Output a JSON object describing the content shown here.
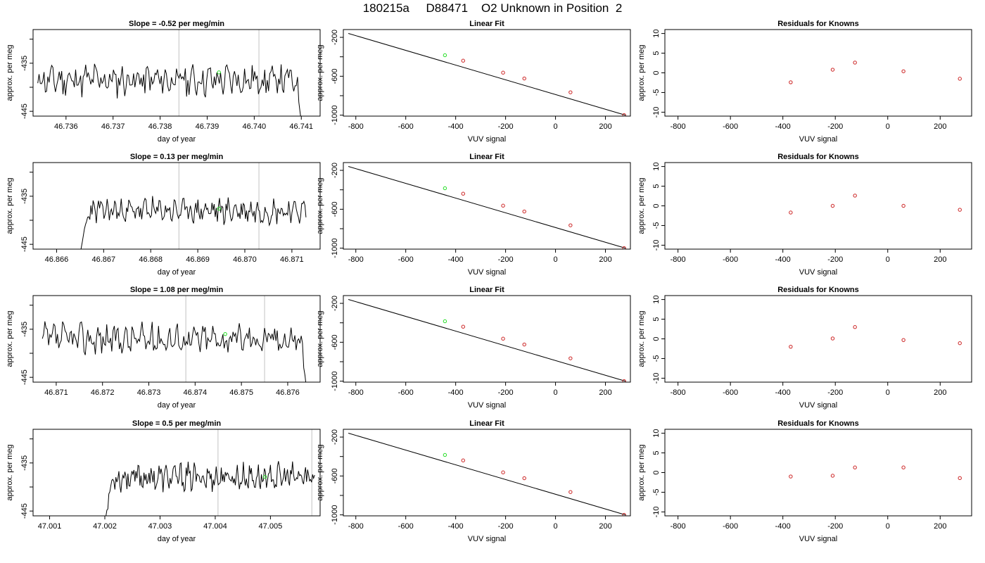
{
  "page": {
    "title": "180215a     D88471    O2 Unknown in Position  2"
  },
  "colors": {
    "line": "#000000",
    "fit": "#000000",
    "residual_point": "#cc2222",
    "unknown_point": "#22dd22",
    "window_marker": "#cccccc",
    "axes": "#000000"
  },
  "rows": [
    {
      "timeseries": {
        "type": "line",
        "title": "Slope =  -0.52  per meg/min",
        "xlabel": "day of year",
        "ylabel": "approx. per meg",
        "xlim": [
          46.7353,
          46.7414
        ],
        "ylim": [
          -446.0,
          -428.0
        ],
        "xticks": [
          46.736,
          46.737,
          46.738,
          46.739,
          46.74,
          46.741
        ],
        "xtick_labels": [
          "46.736",
          "46.737",
          "46.738",
          "46.739",
          "46.740",
          "46.741"
        ],
        "yticks": [
          -445,
          -440,
          -435,
          -430
        ],
        "ytick_labels": [
          "-445",
          "",
          "-435",
          ""
        ],
        "start": 46.7354,
        "end": 46.741,
        "base": -438.5,
        "amp": 2.6,
        "seed": 11,
        "ramp_start": null,
        "drop_end": -447,
        "window_lines": [
          46.7384,
          46.7401
        ],
        "unknown_point": {
          "x": 46.73925,
          "y": -436.9
        }
      },
      "fit": {
        "type": "line",
        "title": "Linear Fit",
        "xlabel": "VUV signal",
        "ylabel": "approx. per meg",
        "xlim": [
          -850,
          300
        ],
        "ylim": [
          -1010,
          -120
        ],
        "xticks": [
          -800,
          -600,
          -400,
          -200,
          0,
          200
        ],
        "xtick_labels": [
          "-800",
          "-600",
          "-400",
          "-200",
          "0",
          "200"
        ],
        "yticks": [
          -1000,
          -800,
          -600,
          -400,
          -200
        ],
        "ytick_labels": [
          "-1000",
          "",
          "-600",
          "",
          "-200"
        ],
        "line": [
          [
            -830,
            -160
          ],
          [
            280,
            -1000
          ]
        ],
        "knowns": [
          [
            -370,
            -440
          ],
          [
            -210,
            -563
          ],
          [
            -125,
            -623
          ],
          [
            60,
            -765
          ],
          [
            275,
            -1000
          ]
        ],
        "unknown": [
          -443,
          -384
        ]
      },
      "residuals": {
        "type": "scatter",
        "title": "Residuals for Knowns",
        "xlabel": "VUV signal",
        "ylabel": "approx. per meg",
        "xlim": [
          -850,
          320
        ],
        "ylim": [
          -11,
          11
        ],
        "xticks": [
          -800,
          -600,
          -400,
          -200,
          0,
          200
        ],
        "xtick_labels": [
          "-800",
          "-600",
          "-400",
          "-200",
          "0",
          "200"
        ],
        "yticks": [
          -10,
          -5,
          0,
          5,
          10
        ],
        "ytick_labels": [
          "-10",
          "-5",
          "0",
          "5",
          "10"
        ],
        "points": [
          [
            -370,
            -2.4
          ],
          [
            -210,
            0.8
          ],
          [
            -125,
            2.6
          ],
          [
            60,
            0.4
          ],
          [
            275,
            -1.5
          ]
        ]
      }
    },
    {
      "timeseries": {
        "type": "line",
        "title": "Slope =  0.13  per meg/min",
        "xlabel": "day of year",
        "ylabel": "approx. per meg",
        "xlim": [
          46.8655,
          46.8716
        ],
        "ylim": [
          -446.0,
          -428.0
        ],
        "xticks": [
          46.866,
          46.867,
          46.868,
          46.869,
          46.87,
          46.871
        ],
        "xtick_labels": [
          "46.866",
          "46.867",
          "46.868",
          "46.869",
          "46.870",
          "46.871"
        ],
        "yticks": [
          -445,
          -440,
          -435,
          -430
        ],
        "ytick_labels": [
          "-445",
          "",
          "-435",
          ""
        ],
        "start": 46.8665,
        "end": 46.8713,
        "base": -438.0,
        "amp": 2.0,
        "seed": 23,
        "ramp_start": -447,
        "drop_end": null,
        "window_lines": [
          46.8686,
          46.8703
        ],
        "unknown_point": {
          "x": 46.86945,
          "y": -437.6
        }
      },
      "fit": {
        "type": "line",
        "title": "Linear Fit",
        "xlabel": "VUV signal",
        "ylabel": "approx. per meg",
        "xlim": [
          -850,
          300
        ],
        "ylim": [
          -1010,
          -120
        ],
        "xticks": [
          -800,
          -600,
          -400,
          -200,
          0,
          200
        ],
        "xtick_labels": [
          "-800",
          "-600",
          "-400",
          "-200",
          "0",
          "200"
        ],
        "yticks": [
          -1000,
          -800,
          -600,
          -400,
          -200
        ],
        "ytick_labels": [
          "-1000",
          "",
          "-600",
          "",
          "-200"
        ],
        "line": [
          [
            -830,
            -160
          ],
          [
            280,
            -1000
          ]
        ],
        "knowns": [
          [
            -370,
            -440
          ],
          [
            -210,
            -563
          ],
          [
            -125,
            -623
          ],
          [
            60,
            -765
          ],
          [
            275,
            -1000
          ]
        ],
        "unknown": [
          -443,
          -384
        ]
      },
      "residuals": {
        "type": "scatter",
        "title": "Residuals for Knowns",
        "xlabel": "VUV signal",
        "ylabel": "approx. per meg",
        "xlim": [
          -850,
          320
        ],
        "ylim": [
          -11,
          11
        ],
        "xticks": [
          -800,
          -600,
          -400,
          -200,
          0,
          200
        ],
        "xtick_labels": [
          "-800",
          "-600",
          "-400",
          "-200",
          "0",
          "200"
        ],
        "yticks": [
          -10,
          -5,
          0,
          5,
          10
        ],
        "ytick_labels": [
          "-10",
          "-5",
          "0",
          "5",
          "10"
        ],
        "points": [
          [
            -370,
            -1.7
          ],
          [
            -210,
            0.0
          ],
          [
            -125,
            2.6
          ],
          [
            60,
            0.0
          ],
          [
            275,
            -1.0
          ]
        ]
      }
    },
    {
      "timeseries": {
        "type": "line",
        "title": "Slope =  1.08  per meg/min",
        "xlabel": "day of year",
        "ylabel": "approx. per meg",
        "xlim": [
          46.8705,
          46.8767
        ],
        "ylim": [
          -446.0,
          -428.0
        ],
        "xticks": [
          46.871,
          46.872,
          46.873,
          46.874,
          46.875,
          46.876
        ],
        "xtick_labels": [
          "46.871",
          "46.872",
          "46.873",
          "46.874",
          "46.875",
          "46.876"
        ],
        "yticks": [
          -445,
          -440,
          -435,
          -430
        ],
        "ytick_labels": [
          "-445",
          "",
          "-435",
          ""
        ],
        "start": 46.8707,
        "end": 46.8764,
        "base": -437.0,
        "amp": 2.5,
        "seed": 37,
        "ramp_start": null,
        "drop_end": -447,
        "window_lines": [
          46.8738,
          46.8755
        ],
        "unknown_point": {
          "x": 46.87465,
          "y": -436.0
        }
      },
      "fit": {
        "type": "line",
        "title": "Linear Fit",
        "xlabel": "VUV signal",
        "ylabel": "approx. per meg",
        "xlim": [
          -850,
          300
        ],
        "ylim": [
          -1010,
          -120
        ],
        "xticks": [
          -800,
          -600,
          -400,
          -200,
          0,
          200
        ],
        "xtick_labels": [
          "-800",
          "-600",
          "-400",
          "-200",
          "0",
          "200"
        ],
        "yticks": [
          -1000,
          -800,
          -600,
          -400,
          -200
        ],
        "ytick_labels": [
          "-1000",
          "",
          "-600",
          "",
          "-200"
        ],
        "line": [
          [
            -830,
            -160
          ],
          [
            280,
            -1000
          ]
        ],
        "knowns": [
          [
            -370,
            -440
          ],
          [
            -210,
            -563
          ],
          [
            -125,
            -623
          ],
          [
            60,
            -765
          ],
          [
            275,
            -1000
          ]
        ],
        "unknown": [
          -443,
          -384
        ]
      },
      "residuals": {
        "type": "scatter",
        "title": "Residuals for Knowns",
        "xlabel": "VUV signal",
        "ylabel": "approx. per meg",
        "xlim": [
          -850,
          320
        ],
        "ylim": [
          -11,
          11
        ],
        "xticks": [
          -800,
          -600,
          -400,
          -200,
          0,
          200
        ],
        "xtick_labels": [
          "-800",
          "-600",
          "-400",
          "-200",
          "0",
          "200"
        ],
        "yticks": [
          -10,
          -5,
          0,
          5,
          10
        ],
        "ytick_labels": [
          "-10",
          "-5",
          "0",
          "5",
          "10"
        ],
        "points": [
          [
            -370,
            -2.0
          ],
          [
            -210,
            0.1
          ],
          [
            -125,
            3.0
          ],
          [
            60,
            -0.3
          ],
          [
            275,
            -1.1
          ]
        ]
      }
    },
    {
      "timeseries": {
        "type": "line",
        "title": "Slope =  0.5  per meg/min",
        "xlabel": "day of year",
        "ylabel": "approx. per meg",
        "xlim": [
          47.0007,
          47.0059
        ],
        "ylim": [
          -446.0,
          -428.0
        ],
        "xticks": [
          47.001,
          47.002,
          47.003,
          47.004,
          47.005
        ],
        "xtick_labels": [
          "47.001",
          "47.002",
          "47.003",
          "47.004",
          "47.005"
        ],
        "yticks": [
          -445,
          -440,
          -435,
          -430
        ],
        "ytick_labels": [
          "-445",
          "",
          "-435",
          ""
        ],
        "start": 47.002,
        "end": 47.0058,
        "base": -438.0,
        "amp": 2.2,
        "seed": 53,
        "ramp_start": -447,
        "drop_end": null,
        "window_lines": [
          47.00405,
          47.00575
        ],
        "unknown_point": {
          "x": 47.0049,
          "y": -437.9
        }
      },
      "fit": {
        "type": "line",
        "title": "Linear Fit",
        "xlabel": "VUV signal",
        "ylabel": "approx. per meg",
        "xlim": [
          -850,
          300
        ],
        "ylim": [
          -1010,
          -120
        ],
        "xticks": [
          -800,
          -600,
          -400,
          -200,
          0,
          200
        ],
        "xtick_labels": [
          "-800",
          "-600",
          "-400",
          "-200",
          "0",
          "200"
        ],
        "yticks": [
          -1000,
          -800,
          -600,
          -400,
          -200
        ],
        "ytick_labels": [
          "-1000",
          "",
          "-600",
          "",
          "-200"
        ],
        "line": [
          [
            -830,
            -160
          ],
          [
            280,
            -1000
          ]
        ],
        "knowns": [
          [
            -370,
            -440
          ],
          [
            -210,
            -563
          ],
          [
            -125,
            -623
          ],
          [
            60,
            -765
          ],
          [
            275,
            -1000
          ]
        ],
        "unknown": [
          -443,
          -384
        ]
      },
      "residuals": {
        "type": "scatter",
        "title": "Residuals for Knowns",
        "xlabel": "VUV signal",
        "ylabel": "approx. per meg",
        "xlim": [
          -850,
          320
        ],
        "ylim": [
          -11,
          11
        ],
        "xticks": [
          -800,
          -600,
          -400,
          -200,
          0,
          200
        ],
        "xtick_labels": [
          "-800",
          "-600",
          "-400",
          "-200",
          "0",
          "200"
        ],
        "yticks": [
          -10,
          -5,
          0,
          5,
          10
        ],
        "ytick_labels": [
          "-10",
          "-5",
          "0",
          "5",
          "10"
        ],
        "points": [
          [
            -370,
            -1.0
          ],
          [
            -210,
            -0.8
          ],
          [
            -125,
            1.3
          ],
          [
            60,
            1.3
          ],
          [
            275,
            -1.4
          ]
        ]
      }
    }
  ]
}
